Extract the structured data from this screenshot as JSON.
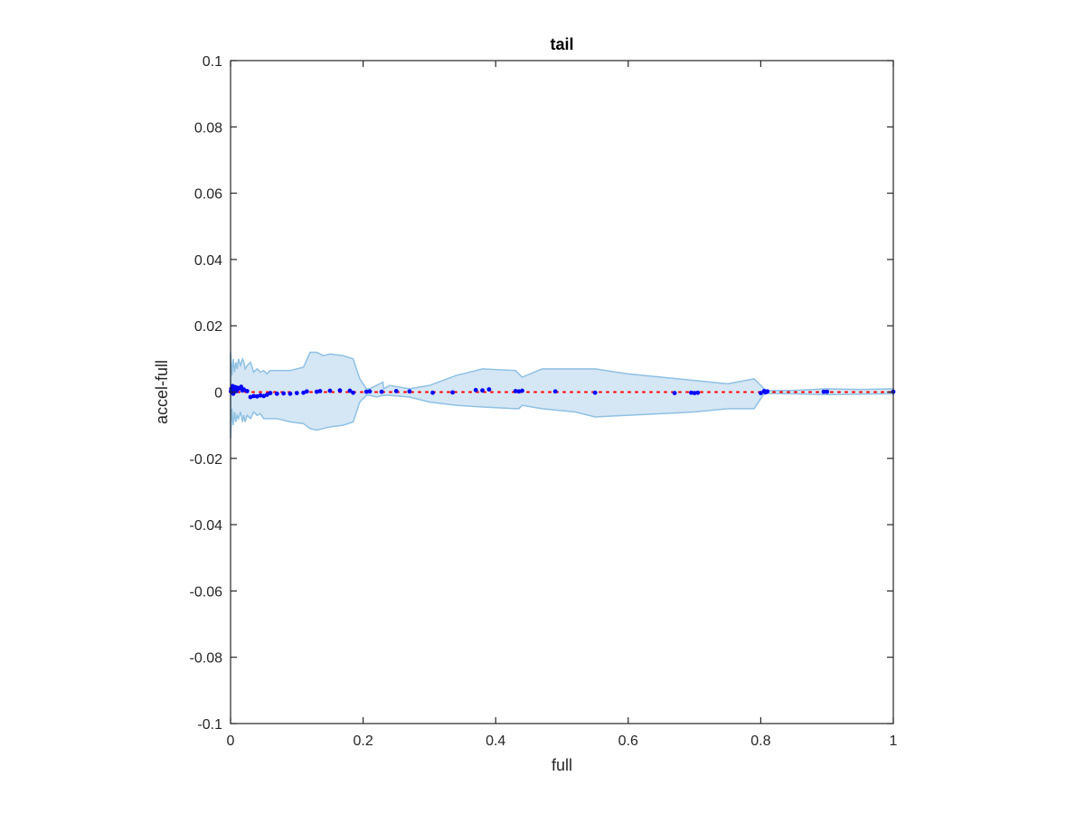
{
  "chart_data": {
    "type": "scatter",
    "title": "tail",
    "xlabel": "full",
    "ylabel": "accel-full",
    "xlim": [
      0,
      1
    ],
    "ylim": [
      -0.1,
      0.1
    ],
    "x_ticks": [
      0,
      0.2,
      0.4,
      0.6,
      0.8,
      1
    ],
    "x_tick_labels": [
      "0",
      "0.2",
      "0.4",
      "0.6",
      "0.8",
      "1"
    ],
    "y_ticks": [
      0.1,
      0.08,
      0.06,
      0.04,
      0.02,
      0,
      -0.02,
      -0.04,
      -0.06,
      -0.08,
      -0.1
    ],
    "y_tick_labels": [
      "0.1",
      "0.08",
      "0.06",
      "0.04",
      "0.02",
      "0",
      "-0.02",
      "-0.04",
      "-0.06",
      "-0.08",
      "-0.1"
    ],
    "grid": false,
    "box": true,
    "colors": {
      "points": "#0000ff",
      "reference_line": "#ff0000",
      "band_fill": "#d5e6f4",
      "band_edge": "#8fc1e3",
      "axes": "#262626"
    },
    "band": {
      "name": "uncertainty band",
      "x": [
        0,
        0.002,
        0.004,
        0.006,
        0.008,
        0.01,
        0.012,
        0.015,
        0.018,
        0.02,
        0.022,
        0.025,
        0.03,
        0.035,
        0.04,
        0.045,
        0.05,
        0.055,
        0.06,
        0.07,
        0.09,
        0.11,
        0.12,
        0.13,
        0.14,
        0.15,
        0.17,
        0.185,
        0.195,
        0.205,
        0.21,
        0.22,
        0.23,
        0.231,
        0.24,
        0.27,
        0.3,
        0.34,
        0.38,
        0.43,
        0.435,
        0.44,
        0.47,
        0.52,
        0.55,
        0.6,
        0.65,
        0.7,
        0.75,
        0.79,
        0.8,
        0.805,
        0.81,
        0.85,
        0.9,
        0.95,
        1
      ],
      "upper": [
        0.012,
        0.005,
        0.01,
        0.006,
        0.009,
        0.007,
        0.01,
        0.008,
        0.01,
        0.009,
        0.007,
        0.008,
        0.009,
        0.006,
        0.007,
        0.006,
        0.0065,
        0.0055,
        0.0065,
        0.0065,
        0.0065,
        0.0075,
        0.012,
        0.012,
        0.011,
        0.0115,
        0.011,
        0.01,
        0.004,
        0.001,
        0.001,
        0.002,
        0.003,
        0.001,
        0.002,
        0.001,
        0.002,
        0.005,
        0.007,
        0.0065,
        0.0055,
        0.0045,
        0.007,
        0.007,
        0.007,
        0.0055,
        0.0045,
        0.0035,
        0.0025,
        0.004,
        0.002,
        0.001,
        0.0004,
        0.0005,
        0.001,
        0.0008,
        0.001
      ],
      "lower": [
        -0.014,
        -0.005,
        -0.01,
        -0.006,
        -0.009,
        -0.007,
        -0.008,
        -0.006,
        -0.009,
        -0.007,
        -0.009,
        -0.007,
        -0.008,
        -0.006,
        -0.007,
        -0.0065,
        -0.008,
        -0.008,
        -0.008,
        -0.008,
        -0.009,
        -0.0095,
        -0.011,
        -0.0115,
        -0.011,
        -0.0105,
        -0.01,
        -0.009,
        -0.003,
        -0.001,
        -0.001,
        -0.0015,
        -0.001,
        -0.001,
        -0.001,
        -0.0015,
        -0.003,
        -0.004,
        -0.0045,
        -0.005,
        -0.005,
        -0.004,
        -0.005,
        -0.006,
        -0.0075,
        -0.007,
        -0.0065,
        -0.006,
        -0.005,
        -0.005,
        -0.002,
        -0.0005,
        -0.0004,
        -0.0005,
        -0.0008,
        -0.0006,
        -0.0005
      ]
    },
    "reference_line": {
      "name": "y = 0",
      "x": [
        0,
        1
      ],
      "y": [
        0,
        0
      ],
      "style": "dotted"
    },
    "series": [
      {
        "name": "points",
        "x": [
          0.0005,
          0.001,
          0.002,
          0.003,
          0.004,
          0.005,
          0.006,
          0.007,
          0.008,
          0.009,
          0.01,
          0.012,
          0.014,
          0.016,
          0.018,
          0.02,
          0.025,
          0.03,
          0.035,
          0.04,
          0.045,
          0.05,
          0.055,
          0.06,
          0.07,
          0.08,
          0.09,
          0.1,
          0.11,
          0.115,
          0.13,
          0.135,
          0.15,
          0.165,
          0.18,
          0.185,
          0.205,
          0.21,
          0.228,
          0.25,
          0.27,
          0.305,
          0.335,
          0.37,
          0.38,
          0.39,
          0.43,
          0.435,
          0.44,
          0.49,
          0.55,
          0.67,
          0.695,
          0.7,
          0.705,
          0.8,
          0.805,
          0.807,
          0.81,
          0.895,
          0.9,
          1.0
        ],
        "y": [
          0.0002,
          0.001,
          0.0005,
          0.0018,
          -0.0005,
          0.0012,
          0.0002,
          0.0015,
          0.0008,
          0.0003,
          0.0013,
          0.001,
          0.0012,
          0.0016,
          0.0005,
          0.0008,
          0.0003,
          -0.0015,
          -0.0012,
          -0.0013,
          -0.001,
          -0.0012,
          -0.0008,
          -0.0003,
          -0.0005,
          -0.0004,
          -0.0005,
          -0.0003,
          -0.0002,
          0.0002,
          0.0001,
          0.0003,
          0.0004,
          0.0005,
          0.0004,
          -0.0002,
          0.0001,
          0.0002,
          0.0001,
          0.0003,
          0.0002,
          -0.0002,
          -0.0001,
          0.0006,
          0.0005,
          0.0008,
          0.0003,
          0.0002,
          0.0004,
          0.0002,
          -0.0002,
          -0.0003,
          -0.0002,
          -0.0003,
          -0.0002,
          -0.0003,
          0.0003,
          -0.0001,
          0.0002,
          0.0001,
          0.0001,
          0.0001
        ]
      }
    ]
  }
}
